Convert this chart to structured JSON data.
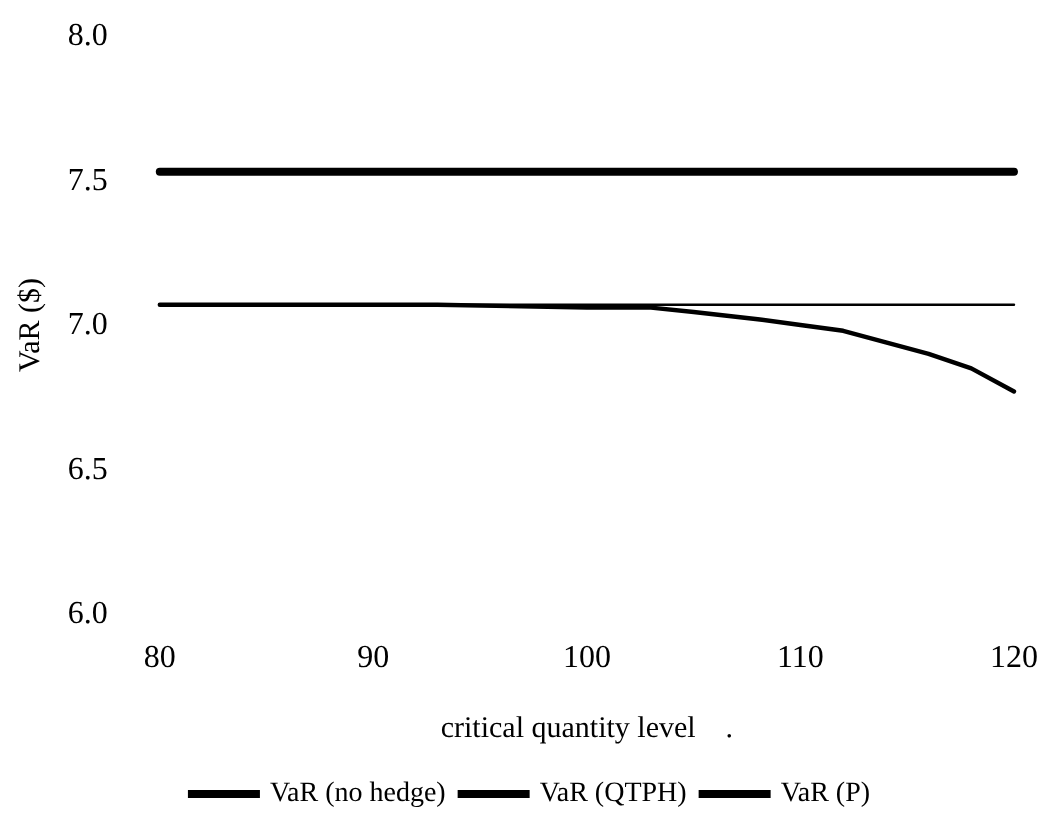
{
  "chart_data": {
    "type": "line",
    "xlabel": "critical quantity level    .",
    "ylabel": "VaR ($)",
    "xlim": [
      80,
      120
    ],
    "xticks": [
      80,
      90,
      100,
      110,
      120
    ],
    "ylim": [
      6.0,
      8.0
    ],
    "yticks": [
      {
        "value": 6.0,
        "label": "6.0"
      },
      {
        "value": 6.5,
        "label": "6.5"
      },
      {
        "value": 7.0,
        "label": "7.0"
      },
      {
        "value": 7.5,
        "label": "7.5"
      },
      {
        "value": 8.0,
        "label": "8.0"
      }
    ],
    "grid": false,
    "legend": "bottom",
    "marker": "none",
    "line_style": "solid",
    "series": [
      {
        "name": "VaR (no hedge)",
        "color": "#000000",
        "x": [
          80,
          120
        ],
        "values": [
          7.53,
          7.53
        ]
      },
      {
        "name": "VaR (QTPH)",
        "color": "#000000",
        "x": [
          80,
          93,
          100,
          103,
          105,
          108,
          110,
          112,
          114,
          116,
          118,
          120
        ],
        "values": [
          7.07,
          7.07,
          7.06,
          7.06,
          7.045,
          7.02,
          7.0,
          6.98,
          6.94,
          6.9,
          6.85,
          6.77
        ]
      },
      {
        "name": "VaR (P)",
        "color": "#000000",
        "x": [
          80,
          120
        ],
        "values": [
          7.07,
          7.07
        ]
      }
    ]
  }
}
